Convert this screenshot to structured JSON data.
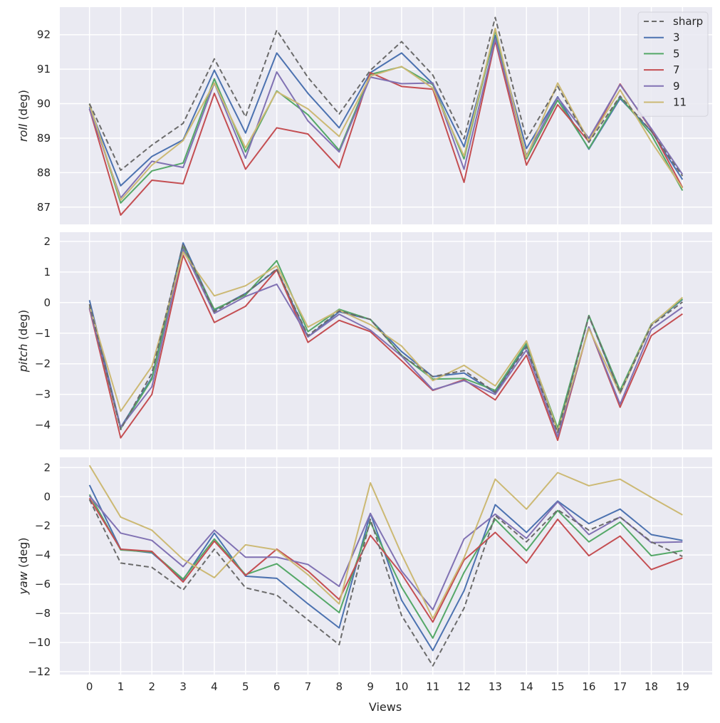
{
  "chart_data": [
    {
      "type": "line",
      "name": "roll",
      "ylabel_italic": "roll",
      "ylabel_unit": " (deg)",
      "ylim": [
        86.5,
        92.8
      ],
      "yticks": [
        87,
        88,
        89,
        90,
        91,
        92
      ],
      "x": [
        0,
        1,
        2,
        3,
        4,
        5,
        6,
        7,
        8,
        9,
        10,
        11,
        12,
        13,
        14,
        15,
        16,
        17,
        18,
        19
      ],
      "series": [
        {
          "name": "sharp",
          "values": [
            90.0,
            88.07,
            88.8,
            89.43,
            91.3,
            89.62,
            92.13,
            90.76,
            89.7,
            90.97,
            91.8,
            90.83,
            88.98,
            92.5,
            88.97,
            90.5,
            88.88,
            90.22,
            89.2,
            87.9
          ]
        },
        {
          "name": "3",
          "values": [
            89.9,
            87.62,
            88.47,
            88.95,
            90.97,
            89.15,
            91.47,
            90.3,
            89.3,
            90.9,
            91.47,
            90.58,
            88.75,
            91.98,
            88.7,
            90.2,
            88.68,
            90.15,
            89.2,
            87.8
          ]
        },
        {
          "name": "5",
          "values": [
            90.0,
            87.12,
            88.05,
            88.28,
            90.72,
            88.6,
            90.37,
            89.68,
            88.65,
            90.85,
            91.07,
            90.55,
            88.4,
            92.12,
            88.4,
            90.1,
            88.7,
            90.2,
            89.1,
            87.48
          ]
        },
        {
          "name": "7",
          "values": [
            89.85,
            86.77,
            87.78,
            87.68,
            90.3,
            88.1,
            89.3,
            89.12,
            88.14,
            90.9,
            90.5,
            90.42,
            87.72,
            91.82,
            88.22,
            89.97,
            88.9,
            90.57,
            89.25,
            87.57
          ]
        },
        {
          "name": "9",
          "values": [
            89.85,
            87.27,
            88.33,
            88.15,
            90.6,
            88.42,
            90.92,
            89.5,
            88.6,
            90.77,
            90.58,
            90.6,
            88.1,
            91.88,
            88.5,
            90.18,
            89.0,
            90.55,
            89.28,
            87.95
          ]
        },
        {
          "name": "11",
          "values": [
            89.98,
            87.2,
            88.22,
            88.93,
            90.6,
            88.72,
            90.35,
            89.85,
            89.05,
            90.8,
            91.08,
            90.45,
            88.48,
            92.18,
            88.45,
            90.6,
            88.92,
            90.4,
            88.9,
            87.55
          ]
        }
      ]
    },
    {
      "type": "line",
      "name": "pitch",
      "ylabel_italic": "pitch",
      "ylabel_unit": " (deg)",
      "ylim": [
        -4.8,
        2.3
      ],
      "yticks": [
        -4,
        -3,
        -2,
        -1,
        0,
        1,
        2
      ],
      "x": [
        0,
        1,
        2,
        3,
        4,
        5,
        6,
        7,
        8,
        9,
        10,
        11,
        12,
        13,
        14,
        15,
        16,
        17,
        18,
        19
      ],
      "series": [
        {
          "name": "sharp",
          "values": [
            -0.05,
            -4.15,
            -2.3,
            1.92,
            -0.3,
            0.3,
            1.1,
            -1.08,
            -0.27,
            -0.55,
            -1.73,
            -2.42,
            -2.22,
            -2.93,
            -1.45,
            -4.25,
            -0.45,
            -2.95,
            -0.75,
            0.02
          ]
        },
        {
          "name": "3",
          "values": [
            0.08,
            -4.08,
            -2.45,
            1.95,
            -0.25,
            0.3,
            1.08,
            -1.12,
            -0.3,
            -0.55,
            -1.6,
            -2.42,
            -2.3,
            -2.95,
            -1.38,
            -4.2,
            -0.43,
            -2.97,
            -0.72,
            0.1
          ]
        },
        {
          "name": "5",
          "values": [
            -0.15,
            -4.12,
            -2.5,
            1.82,
            -0.22,
            0.25,
            1.37,
            -0.95,
            -0.22,
            -0.55,
            -1.72,
            -2.5,
            -2.48,
            -2.87,
            -1.33,
            -4.1,
            -0.42,
            -2.87,
            -0.7,
            0.12
          ]
        },
        {
          "name": "7",
          "values": [
            -0.2,
            -4.42,
            -3.0,
            1.55,
            -0.65,
            -0.12,
            1.07,
            -1.3,
            -0.58,
            -0.95,
            -1.9,
            -2.87,
            -2.52,
            -3.18,
            -1.72,
            -4.5,
            -0.8,
            -3.42,
            -1.08,
            -0.37
          ]
        },
        {
          "name": "9",
          "values": [
            -0.17,
            -4.08,
            -2.75,
            1.75,
            -0.35,
            0.2,
            0.6,
            -1.12,
            -0.38,
            -0.9,
            -1.75,
            -2.85,
            -2.55,
            -3.0,
            -1.55,
            -4.38,
            -0.8,
            -3.32,
            -0.88,
            -0.15
          ]
        },
        {
          "name": "11",
          "values": [
            -0.1,
            -3.55,
            -2.08,
            1.65,
            0.22,
            0.55,
            1.2,
            -0.8,
            -0.25,
            -0.72,
            -1.42,
            -2.55,
            -2.05,
            -2.72,
            -1.25,
            -4.2,
            -0.85,
            -2.97,
            -0.72,
            0.17
          ]
        }
      ]
    },
    {
      "type": "line",
      "name": "yaw",
      "ylabel_italic": "yaw",
      "ylabel_unit": " (deg)",
      "ylim": [
        -12.2,
        2.7
      ],
      "yticks": [
        -12,
        -10,
        -8,
        -6,
        -4,
        -2,
        0,
        2
      ],
      "x": [
        0,
        1,
        2,
        3,
        4,
        5,
        6,
        7,
        8,
        9,
        10,
        11,
        12,
        13,
        14,
        15,
        16,
        17,
        18,
        19
      ],
      "series": [
        {
          "name": "sharp",
          "values": [
            -0.2,
            -4.55,
            -4.85,
            -6.4,
            -3.6,
            -6.25,
            -6.75,
            -8.45,
            -10.15,
            -1.55,
            -8.15,
            -11.6,
            -7.65,
            -1.3,
            -3.1,
            -0.9,
            -2.3,
            -1.4,
            -3.1,
            -4.1
          ]
        },
        {
          "name": "3",
          "values": [
            0.8,
            -3.6,
            -3.85,
            -5.7,
            -2.5,
            -5.45,
            -5.6,
            -7.35,
            -9.0,
            -1.15,
            -7.1,
            -10.55,
            -6.45,
            -0.55,
            -2.45,
            -0.3,
            -1.85,
            -0.85,
            -2.6,
            -3.0
          ]
        },
        {
          "name": "5",
          "values": [
            0.15,
            -3.65,
            -3.8,
            -5.65,
            -2.9,
            -5.35,
            -4.6,
            -6.25,
            -7.95,
            -1.75,
            -6.2,
            -9.7,
            -5.2,
            -1.55,
            -3.7,
            -0.95,
            -3.1,
            -1.75,
            -4.05,
            -3.7
          ]
        },
        {
          "name": "7",
          "values": [
            -0.1,
            -3.6,
            -3.75,
            -5.85,
            -3.05,
            -5.4,
            -3.6,
            -5.1,
            -7.05,
            -2.65,
            -5.3,
            -8.6,
            -4.35,
            -2.45,
            -4.55,
            -1.55,
            -4.05,
            -2.7,
            -5.0,
            -4.2
          ]
        },
        {
          "name": "9",
          "values": [
            0.05,
            -2.5,
            -3.0,
            -4.8,
            -2.3,
            -4.15,
            -4.15,
            -4.65,
            -6.15,
            -1.15,
            -5.1,
            -7.75,
            -2.9,
            -1.2,
            -2.85,
            -0.35,
            -2.6,
            -1.4,
            -3.15,
            -3.1
          ]
        },
        {
          "name": "11",
          "values": [
            2.15,
            -1.4,
            -2.3,
            -4.3,
            -5.55,
            -3.3,
            -3.65,
            -5.35,
            -7.35,
            0.95,
            -3.95,
            -8.35,
            -4.2,
            1.2,
            -0.85,
            1.65,
            0.75,
            1.2,
            -0.05,
            -1.25
          ]
        }
      ]
    }
  ],
  "xlabel": "Views",
  "xticks": [
    "0",
    "1",
    "2",
    "3",
    "4",
    "5",
    "6",
    "7",
    "8",
    "9",
    "10",
    "11",
    "12",
    "13",
    "14",
    "15",
    "16",
    "17",
    "18",
    "19"
  ],
  "legend": {
    "placement": "top-right",
    "entries": [
      {
        "label": "sharp",
        "color": "#6b6b6b",
        "dashed": true
      },
      {
        "label": "3",
        "color": "#4c72b0",
        "dashed": false
      },
      {
        "label": "5",
        "color": "#55a868",
        "dashed": false
      },
      {
        "label": "7",
        "color": "#c44e52",
        "dashed": false
      },
      {
        "label": "9",
        "color": "#8172b3",
        "dashed": false
      },
      {
        "label": "11",
        "color": "#ccb974",
        "dashed": false
      }
    ]
  },
  "colors": {
    "panel_bg": "#eaeaf2",
    "grid": "#ffffff",
    "text": "#262626"
  }
}
